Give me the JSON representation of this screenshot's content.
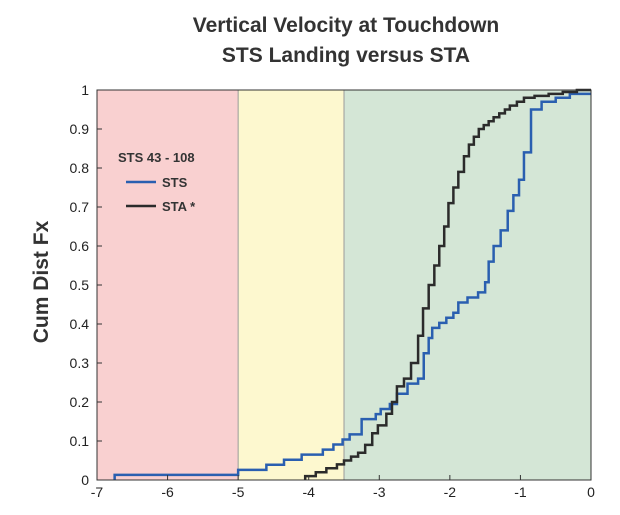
{
  "chart_data": {
    "type": "line",
    "step": true,
    "title": [
      "Vertical Velocity at Touchdown",
      "STS Landing versus STA"
    ],
    "xlabel": "",
    "ylabel": "Cum Dist Fx",
    "xlim": [
      -7,
      0
    ],
    "ylim": [
      0,
      1
    ],
    "xticks": [
      -7,
      -6,
      -5,
      -4,
      -3,
      -2,
      -1,
      0
    ],
    "xtick_labels": [
      "-7",
      "-6",
      "-5",
      "-4",
      "-3",
      "-2",
      "-1",
      "0"
    ],
    "yticks": [
      0,
      0.1,
      0.2,
      0.3,
      0.4,
      0.5,
      0.6,
      0.7,
      0.8,
      0.9,
      1
    ],
    "ytick_labels": [
      "0",
      "0.1",
      "0.2",
      "0.3",
      "0.4",
      "0.5",
      "0.6",
      "0.7",
      "0.8",
      "0.9",
      "1"
    ],
    "grid": false,
    "legend": {
      "title": "STS 43 - 108",
      "placement": "upper-left",
      "entries": [
        "STS",
        "STA *"
      ]
    },
    "regions": [
      {
        "x0": -7,
        "x1": -5,
        "color": "#f9d0d0"
      },
      {
        "x0": -5,
        "x1": -3.5,
        "color": "#fdf8cf"
      },
      {
        "x0": -3.5,
        "x1": 0,
        "color": "#d4e6d6"
      }
    ],
    "series": [
      {
        "name": "STS",
        "color": "#2a5fb0",
        "x": [
          -6.75,
          -5.0,
          -4.6,
          -4.35,
          -4.1,
          -3.8,
          -3.65,
          -3.52,
          -3.42,
          -3.25,
          -3.05,
          -2.98,
          -2.85,
          -2.75,
          -2.6,
          -2.45,
          -2.37,
          -2.3,
          -2.25,
          -2.15,
          -2.05,
          -1.95,
          -1.88,
          -1.75,
          -1.6,
          -1.5,
          -1.45,
          -1.38,
          -1.28,
          -1.18,
          -1.1,
          -1.02,
          -0.95,
          -0.85,
          -0.7,
          -0.5,
          -0.3,
          0
        ],
        "y": [
          0.013,
          0.026,
          0.039,
          0.052,
          0.065,
          0.078,
          0.091,
          0.104,
          0.117,
          0.156,
          0.169,
          0.182,
          0.195,
          0.221,
          0.247,
          0.26,
          0.325,
          0.364,
          0.39,
          0.403,
          0.416,
          0.429,
          0.455,
          0.468,
          0.481,
          0.507,
          0.56,
          0.6,
          0.64,
          0.69,
          0.73,
          0.77,
          0.84,
          0.95,
          0.97,
          0.98,
          0.99,
          0.99
        ]
      },
      {
        "name": "STA *",
        "color": "#2b2b2b",
        "x": [
          -4.05,
          -3.9,
          -3.75,
          -3.6,
          -3.5,
          -3.4,
          -3.3,
          -3.2,
          -3.1,
          -3.02,
          -2.9,
          -2.82,
          -2.75,
          -2.65,
          -2.55,
          -2.45,
          -2.38,
          -2.3,
          -2.22,
          -2.15,
          -2.08,
          -2.02,
          -1.95,
          -1.88,
          -1.8,
          -1.73,
          -1.66,
          -1.59,
          -1.52,
          -1.45,
          -1.38,
          -1.3,
          -1.22,
          -1.15,
          -1.05,
          -0.95,
          -0.8,
          -0.6,
          -0.4,
          -0.2,
          0
        ],
        "y": [
          0.01,
          0.02,
          0.03,
          0.04,
          0.05,
          0.06,
          0.07,
          0.09,
          0.12,
          0.14,
          0.17,
          0.2,
          0.24,
          0.26,
          0.3,
          0.37,
          0.44,
          0.5,
          0.55,
          0.6,
          0.65,
          0.71,
          0.75,
          0.79,
          0.83,
          0.86,
          0.88,
          0.9,
          0.91,
          0.92,
          0.93,
          0.94,
          0.95,
          0.96,
          0.97,
          0.98,
          0.985,
          0.99,
          0.995,
          1.0,
          1.0
        ]
      }
    ]
  }
}
